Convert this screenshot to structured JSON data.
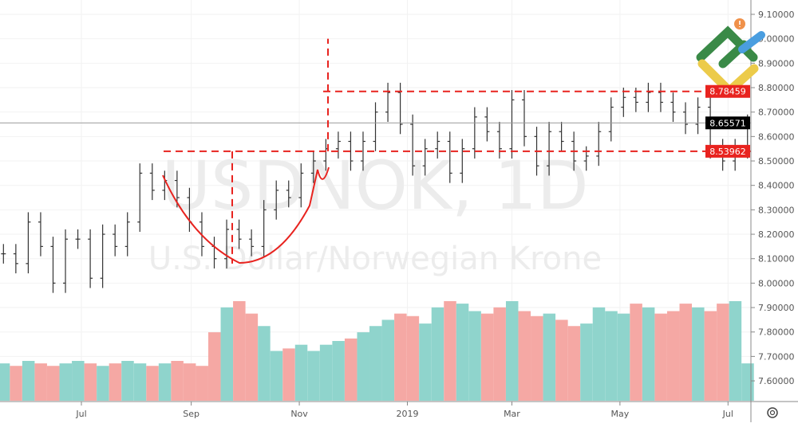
{
  "chart_data": {
    "type": "ohlc",
    "symbol_watermark": "USDNOK, 1D",
    "description_watermark": "U.S. Dollar/Norwegian Krone",
    "ylim": [
      7.55,
      9.1
    ],
    "y_ticks": [
      "9.10000",
      "9.00000",
      "8.90000",
      "8.80000",
      "8.70000",
      "8.60000",
      "8.50000",
      "8.40000",
      "8.30000",
      "8.20000",
      "8.10000",
      "8.00000",
      "7.90000",
      "7.80000",
      "7.70000",
      "7.60000"
    ],
    "x_ticks": [
      {
        "label": "Jul",
        "date": "2018-07-01"
      },
      {
        "label": "Sep",
        "date": "2018-09-01"
      },
      {
        "label": "Nov",
        "date": "2018-11-01"
      },
      {
        "label": "2019",
        "date": "2019-01-01"
      },
      {
        "label": "Mar",
        "date": "2019-03-01"
      },
      {
        "label": "May",
        "date": "2019-05-01"
      },
      {
        "label": "Jul",
        "date": "2019-07-01"
      }
    ],
    "dates": [
      "2018-05-18",
      "2018-05-25",
      "2018-06-01",
      "2018-06-08",
      "2018-06-15",
      "2018-06-22",
      "2018-06-29",
      "2018-07-06",
      "2018-07-13",
      "2018-07-20",
      "2018-07-27",
      "2018-08-03",
      "2018-08-10",
      "2018-08-17",
      "2018-08-24",
      "2018-08-31",
      "2018-09-07",
      "2018-09-14",
      "2018-09-21",
      "2018-09-28",
      "2018-10-05",
      "2018-10-12",
      "2018-10-19",
      "2018-10-26",
      "2018-11-02",
      "2018-11-09",
      "2018-11-16",
      "2018-11-23",
      "2018-11-30",
      "2018-12-07",
      "2018-12-14",
      "2018-12-21",
      "2018-12-28",
      "2019-01-04",
      "2019-01-11",
      "2019-01-18",
      "2019-01-25",
      "2019-02-01",
      "2019-02-08",
      "2019-02-15",
      "2019-02-22",
      "2019-03-01",
      "2019-03-08",
      "2019-03-15",
      "2019-03-22",
      "2019-03-29",
      "2019-04-05",
      "2019-04-12",
      "2019-04-19",
      "2019-04-26",
      "2019-05-03",
      "2019-05-10",
      "2019-05-17",
      "2019-05-24",
      "2019-05-31",
      "2019-06-07",
      "2019-06-14",
      "2019-06-21",
      "2019-06-28",
      "2019-07-05",
      "2019-07-12"
    ],
    "close": [
      8.12,
      8.08,
      8.25,
      8.15,
      8.0,
      8.18,
      8.18,
      8.02,
      8.2,
      8.15,
      8.25,
      8.45,
      8.38,
      8.42,
      8.35,
      8.25,
      8.15,
      8.1,
      8.22,
      8.18,
      8.15,
      8.3,
      8.38,
      8.35,
      8.45,
      8.5,
      8.55,
      8.58,
      8.5,
      8.58,
      8.7,
      8.78,
      8.65,
      8.48,
      8.55,
      8.58,
      8.45,
      8.55,
      8.68,
      8.62,
      8.55,
      8.75,
      8.6,
      8.48,
      8.62,
      8.58,
      8.5,
      8.52,
      8.62,
      8.72,
      8.76,
      8.74,
      8.78,
      8.74,
      8.7,
      8.65,
      8.72,
      8.55,
      8.5,
      8.55,
      8.65
    ],
    "volume": [
      30,
      28,
      32,
      30,
      28,
      30,
      32,
      30,
      28,
      30,
      32,
      30,
      28,
      30,
      32,
      30,
      28,
      55,
      75,
      80,
      70,
      60,
      40,
      42,
      45,
      40,
      45,
      48,
      50,
      55,
      60,
      65,
      70,
      68,
      62,
      75,
      80,
      78,
      72,
      70,
      75,
      80,
      72,
      68,
      70,
      65,
      60,
      62,
      75,
      72,
      70,
      78,
      75,
      70,
      72,
      78,
      75,
      72,
      78,
      80,
      30
    ],
    "volume_colors": {
      "up": "#8fd4cc",
      "down": "#f5a8a4"
    },
    "levels": {
      "resistance": "8.78459",
      "support": "8.53962",
      "last": "8.65571"
    },
    "colors": {
      "level": "#e8231f",
      "bar": "#333333",
      "last_label": "#000000"
    }
  },
  "ui": {
    "settings_icon": "gear-icon",
    "logo": "brand-logo"
  }
}
